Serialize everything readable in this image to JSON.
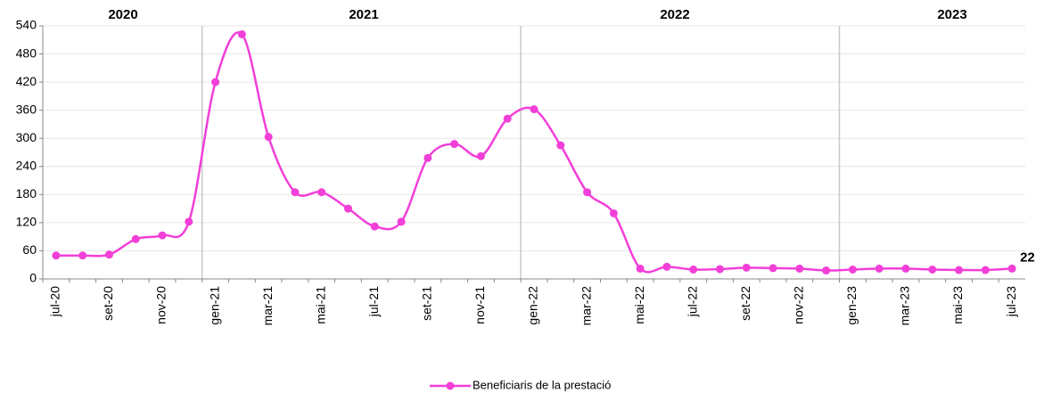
{
  "chart_data": {
    "type": "line",
    "annotations": [
      "2020",
      "2021",
      "2022",
      "2023"
    ],
    "categories": [
      "jul-20",
      null,
      "set-20",
      null,
      "nov-20",
      null,
      "gen-21",
      null,
      "mar-21",
      null,
      "mai-21",
      null,
      "jul-21",
      null,
      "set-21",
      null,
      "nov-21",
      null,
      "gen-22",
      null,
      "mar-22",
      null,
      "mai-22",
      null,
      "jul-22",
      null,
      "set-22",
      null,
      "nov-22",
      null,
      "gen-23",
      null,
      "mar-23",
      null,
      "mai-23",
      null,
      "jul-23"
    ],
    "series": [
      {
        "name": "Beneficiaris de la prestació",
        "color": "#f23fd8",
        "values": [
          50,
          50,
          52,
          85,
          93,
          122,
          420,
          522,
          303,
          185,
          185,
          150,
          112,
          122,
          258,
          288,
          262,
          342,
          362,
          285,
          185,
          140,
          22,
          26,
          20,
          21,
          24,
          23,
          22,
          18,
          20,
          22,
          22,
          20,
          19,
          19,
          22
        ],
        "value_labels": [
          null,
          null,
          null,
          null,
          null,
          null,
          null,
          null,
          null,
          null,
          null,
          null,
          null,
          null,
          null,
          null,
          null,
          null,
          null,
          null,
          null,
          null,
          null,
          null,
          null,
          null,
          null,
          null,
          null,
          null,
          null,
          null,
          null,
          null,
          null,
          null,
          "22"
        ]
      }
    ],
    "ylim": [
      0,
      540
    ],
    "yticks": [
      0,
      60,
      120,
      180,
      240,
      300,
      360,
      420,
      480,
      540
    ],
    "grid": true,
    "legend": "bottom"
  }
}
